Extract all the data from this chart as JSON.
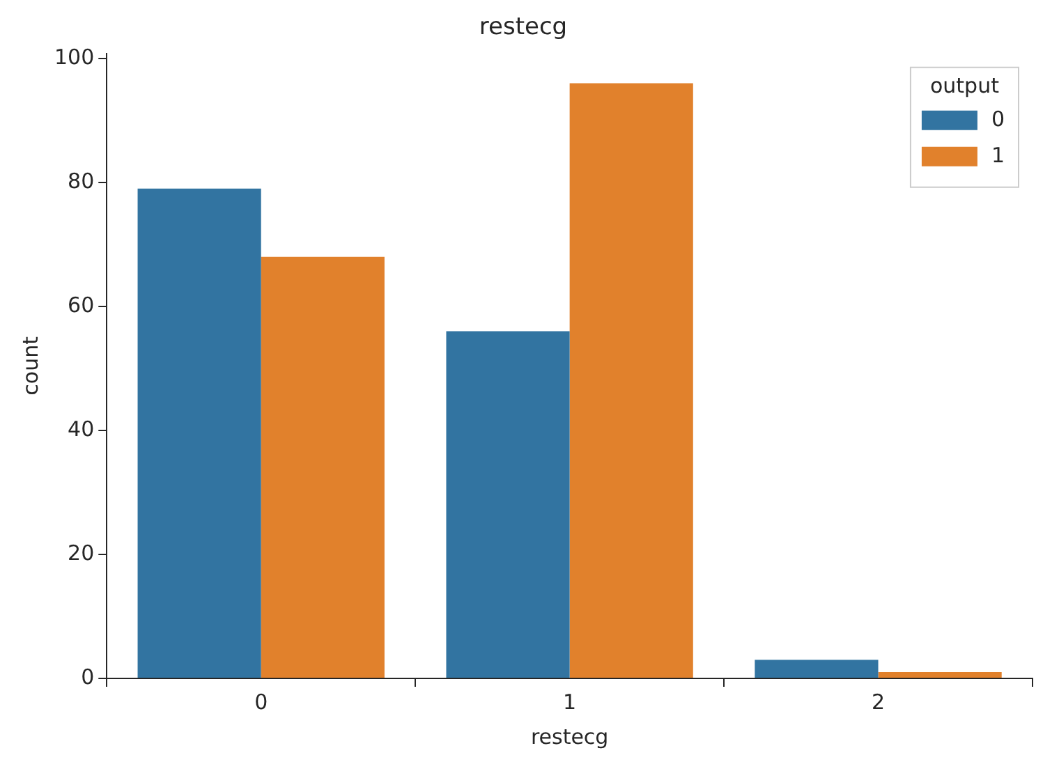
{
  "chart_data": {
    "type": "bar",
    "title": "restecg",
    "xlabel": "restecg",
    "ylabel": "count",
    "legend_title": "output",
    "legend": "top right",
    "categories": [
      "0",
      "1",
      "2"
    ],
    "series": [
      {
        "name": "0",
        "color": "#3274a1",
        "values": [
          79,
          56,
          3
        ]
      },
      {
        "name": "1",
        "color": "#e1812c",
        "values": [
          68,
          96,
          1
        ]
      }
    ],
    "ylim": [
      0,
      100.8
    ],
    "yticks": [
      0,
      20,
      40,
      60,
      80,
      100
    ],
    "grid": false
  }
}
